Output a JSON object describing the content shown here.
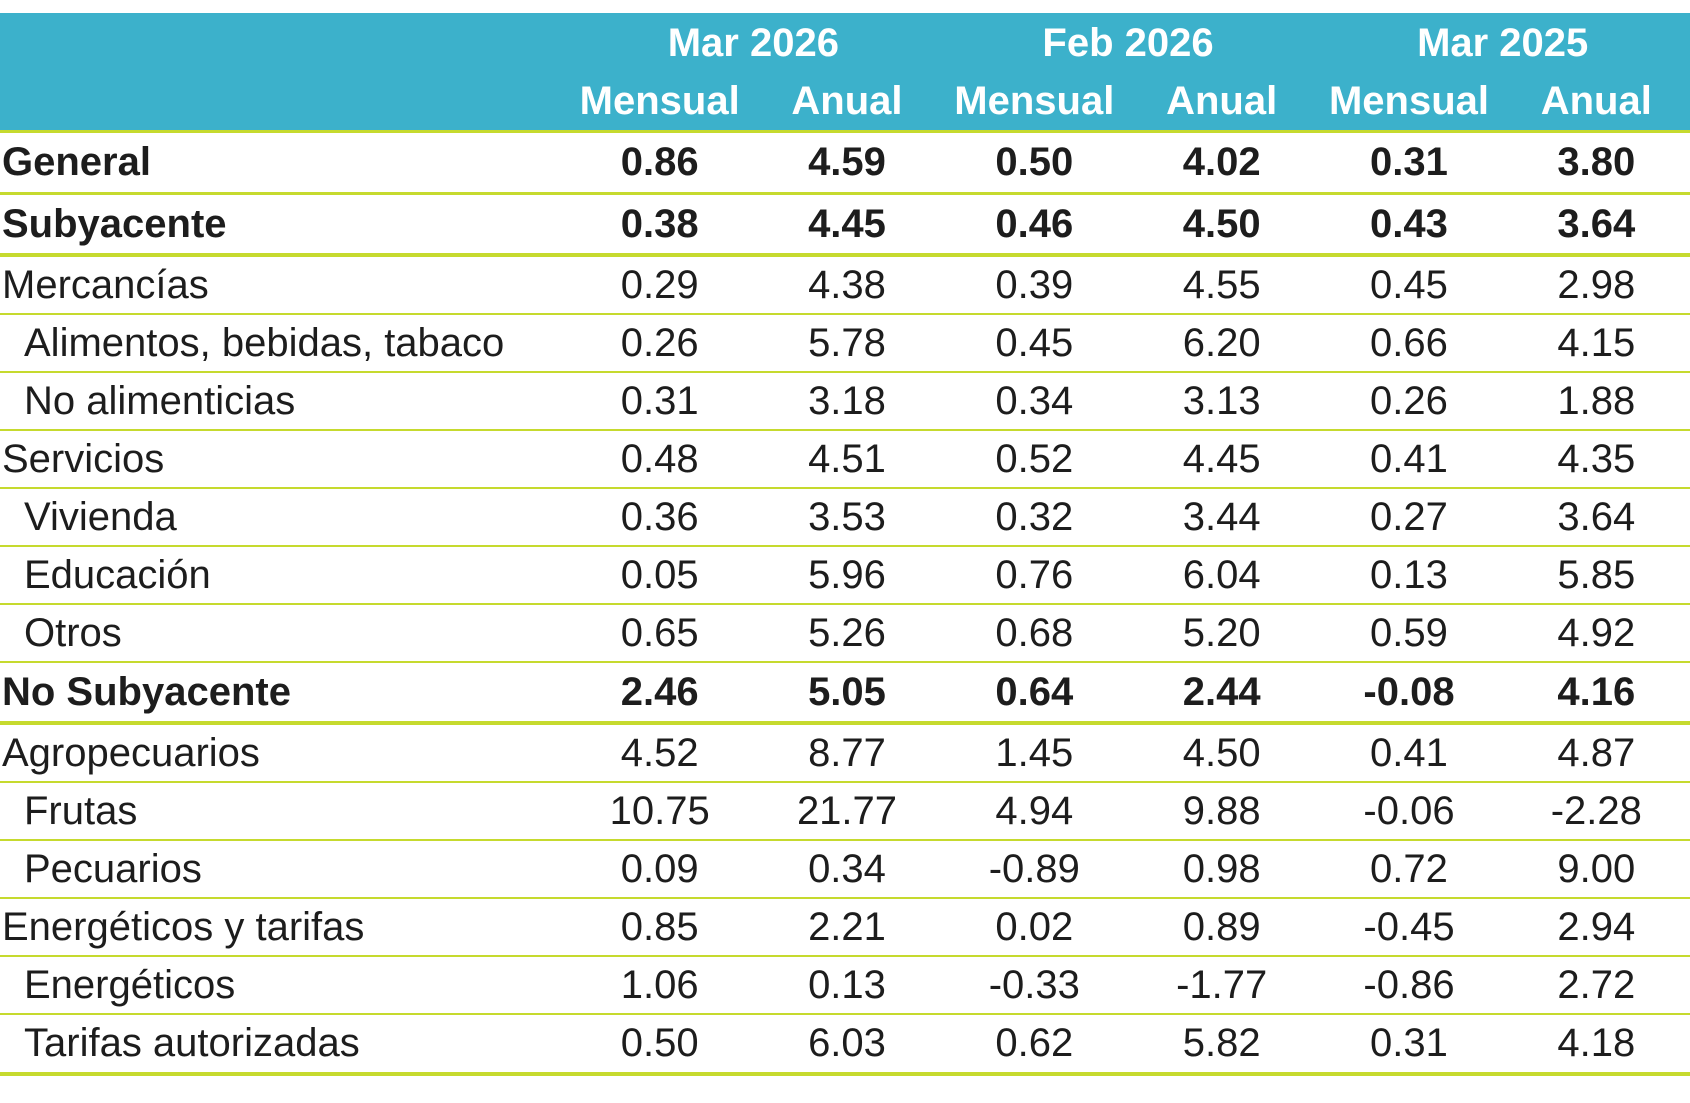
{
  "colors": {
    "header_background": "#3cb1cb",
    "header_text": "#ffffff",
    "rule": "#c6da2e",
    "text": "#1d1d1d"
  },
  "chart_data": {
    "type": "table",
    "column_groups": [
      "Mar 2026",
      "Feb 2026",
      "Mar 2025"
    ],
    "columns": [
      "Mensual",
      "Anual",
      "Mensual",
      "Anual",
      "Mensual",
      "Anual"
    ],
    "rows": [
      {
        "label": "General",
        "bold": true,
        "level": 0,
        "values": [
          "0.86",
          "4.59",
          "0.50",
          "4.02",
          "0.31",
          "3.80"
        ]
      },
      {
        "label": "Subyacente",
        "bold": true,
        "level": 0,
        "values": [
          "0.38",
          "4.45",
          "0.46",
          "4.50",
          "0.43",
          "3.64"
        ]
      },
      {
        "label": "Mercancías",
        "bold": false,
        "level": 0,
        "values": [
          "0.29",
          "4.38",
          "0.39",
          "4.55",
          "0.45",
          "2.98"
        ]
      },
      {
        "label": "Alimentos, bebidas, tabaco",
        "bold": false,
        "level": 1,
        "values": [
          "0.26",
          "5.78",
          "0.45",
          "6.20",
          "0.66",
          "4.15"
        ]
      },
      {
        "label": "No alimenticias",
        "bold": false,
        "level": 1,
        "values": [
          "0.31",
          "3.18",
          "0.34",
          "3.13",
          "0.26",
          "1.88"
        ]
      },
      {
        "label": "Servicios",
        "bold": false,
        "level": 0,
        "values": [
          "0.48",
          "4.51",
          "0.52",
          "4.45",
          "0.41",
          "4.35"
        ]
      },
      {
        "label": "Vivienda",
        "bold": false,
        "level": 1,
        "values": [
          "0.36",
          "3.53",
          "0.32",
          "3.44",
          "0.27",
          "3.64"
        ]
      },
      {
        "label": "Educación",
        "bold": false,
        "level": 1,
        "values": [
          "0.05",
          "5.96",
          "0.76",
          "6.04",
          "0.13",
          "5.85"
        ]
      },
      {
        "label": "Otros",
        "bold": false,
        "level": 1,
        "values": [
          "0.65",
          "5.26",
          "0.68",
          "5.20",
          "0.59",
          "4.92"
        ]
      },
      {
        "label": "No Subyacente",
        "bold": true,
        "level": 0,
        "values": [
          "2.46",
          "5.05",
          "0.64",
          "2.44",
          "-0.08",
          "4.16"
        ]
      },
      {
        "label": "Agropecuarios",
        "bold": false,
        "level": 0,
        "values": [
          "4.52",
          "8.77",
          "1.45",
          "4.50",
          "0.41",
          "4.87"
        ]
      },
      {
        "label": "Frutas",
        "bold": false,
        "level": 1,
        "values": [
          "10.75",
          "21.77",
          "4.94",
          "9.88",
          "-0.06",
          "-2.28"
        ]
      },
      {
        "label": "Pecuarios",
        "bold": false,
        "level": 1,
        "values": [
          "0.09",
          "0.34",
          "-0.89",
          "0.98",
          "0.72",
          "9.00"
        ]
      },
      {
        "label": "Energéticos y tarifas",
        "bold": false,
        "level": 0,
        "values": [
          "0.85",
          "2.21",
          "0.02",
          "0.89",
          "-0.45",
          "2.94"
        ]
      },
      {
        "label": "Energéticos",
        "bold": false,
        "level": 1,
        "values": [
          "1.06",
          "0.13",
          "-0.33",
          "-1.77",
          "-0.86",
          "2.72"
        ]
      },
      {
        "label": "Tarifas autorizadas",
        "bold": false,
        "level": 1,
        "values": [
          "0.50",
          "6.03",
          "0.62",
          "5.82",
          "0.31",
          "4.18"
        ]
      }
    ]
  }
}
